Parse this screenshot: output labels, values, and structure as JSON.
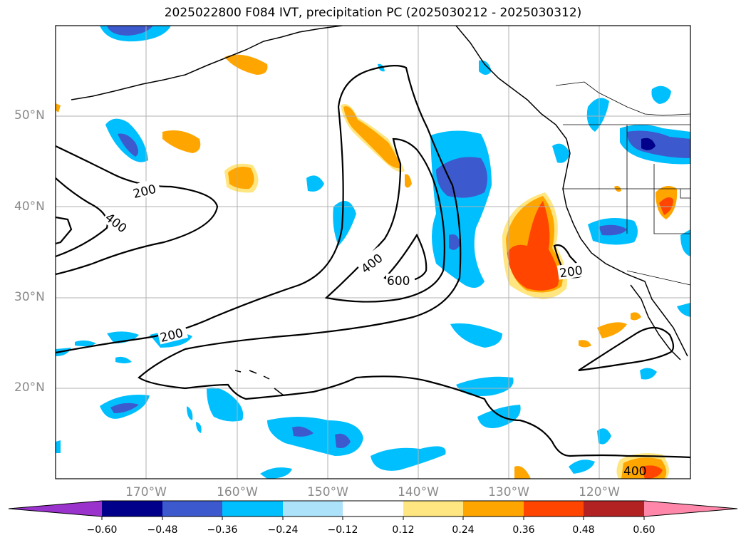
{
  "title": "2025022800 F084 IVT, precipitation PC (2025030212 - 2025030312)",
  "lat_labels": [
    "50°N",
    "40°N",
    "30°N",
    "20°N"
  ],
  "lon_labels": [
    "170°W",
    "160°W",
    "150°W",
    "140°W",
    "130°W",
    "120°W"
  ],
  "contour_labels": [
    {
      "text": "200"
    },
    {
      "text": "400"
    },
    {
      "text": "200"
    },
    {
      "text": "400"
    },
    {
      "text": "600"
    },
    {
      "text": "200"
    },
    {
      "text": "400"
    }
  ],
  "colorbar": {
    "tick_labels": [
      "−0.60",
      "−0.48",
      "−0.36",
      "−0.24",
      "−0.12",
      "0.12",
      "0.24",
      "0.36",
      "0.48",
      "0.60"
    ],
    "colors": [
      "#9933cc",
      "#00008b",
      "#3c5acd",
      "#00bfff",
      "#ade3fa",
      "#ffffff",
      "#ffe680",
      "#ffa500",
      "#ff4500",
      "#b22222",
      "#ff88aa"
    ]
  }
}
